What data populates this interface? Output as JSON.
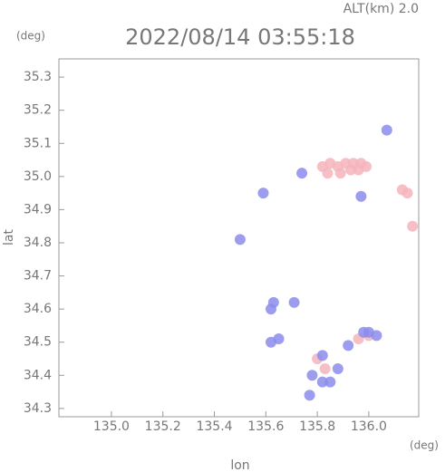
{
  "chart_data": {
    "type": "scatter",
    "title": "2022/08/14 03:55:18",
    "annotation": "ALT(km) 2.0",
    "x_label": "lon",
    "y_label": "lat",
    "x_unit": "(deg)",
    "y_unit": "(deg)",
    "xlim": [
      134.796,
      136.194
    ],
    "ylim": [
      34.275,
      35.355
    ],
    "xticks": [
      {
        "value": 135,
        "label": "135.0"
      },
      135.2,
      135.4,
      135.6,
      135.8,
      {
        "value": 136,
        "label": "136.0"
      }
    ],
    "yticks": [
      34.3,
      34.4,
      34.5,
      34.6,
      34.7,
      34.8,
      34.9,
      {
        "value": 35,
        "label": "35.0"
      },
      35.1,
      35.2,
      35.3
    ],
    "series": [
      {
        "color": "#f4b4bc",
        "x": [
          135.82,
          135.85,
          135.88,
          135.91,
          135.94,
          135.97,
          135.99,
          135.84,
          135.89,
          135.93,
          135.96,
          136.13,
          136.15,
          136.17,
          135.96,
          136.0,
          135.8,
          135.83
        ],
        "y": [
          35.03,
          35.04,
          35.03,
          35.04,
          35.04,
          35.04,
          35.03,
          35.01,
          35.01,
          35.02,
          35.02,
          34.96,
          34.95,
          34.85,
          34.51,
          34.52,
          34.45,
          34.42
        ]
      },
      {
        "color": "#8c8cec",
        "x": [
          135.82,
          135.82,
          135.78,
          135.77,
          135.85,
          135.88,
          135.92,
          136.0,
          136.03,
          135.98,
          135.62,
          135.63,
          135.62,
          135.65,
          135.59,
          135.74,
          136.07,
          135.5,
          135.97,
          135.71
        ],
        "y": [
          34.46,
          34.38,
          34.4,
          34.34,
          34.38,
          34.42,
          34.49,
          34.53,
          34.52,
          34.53,
          34.6,
          34.62,
          34.5,
          34.51,
          34.95,
          35.01,
          35.14,
          34.81,
          34.94,
          34.62
        ]
      }
    ]
  }
}
